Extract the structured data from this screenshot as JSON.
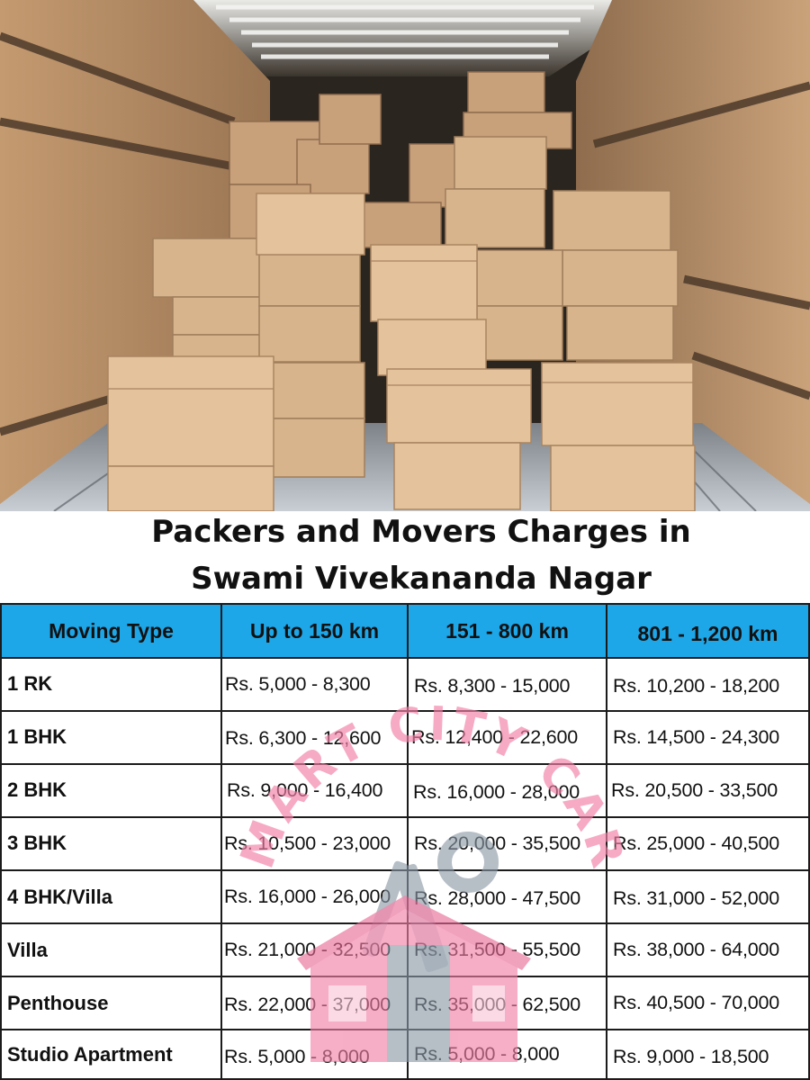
{
  "heading": {
    "line1": "Packers and Movers Charges in",
    "line2": "Swami Vivekananda Nagar"
  },
  "table": {
    "headers": [
      "Moving Type",
      "Up to 150 km",
      "151 - 800 km",
      "801 - 1,200 km"
    ],
    "rows": [
      {
        "type": "1 RK",
        "up_to_150": "Rs. 5,000 - 8,300",
        "km_151_800": "Rs. 8,300 - 15,000",
        "km_801_1200": "Rs. 10,200 - 18,200"
      },
      {
        "type": "1 BHK",
        "up_to_150": "Rs. 6,300 - 12,600",
        "km_151_800": "Rs. 12,400 - 22,600",
        "km_801_1200": "Rs. 14,500 - 24,300"
      },
      {
        "type": "2 BHK",
        "up_to_150": "Rs. 9,000 - 16,400",
        "km_151_800": "Rs. 16,000 - 28,000",
        "km_801_1200": "Rs. 20,500 - 33,500"
      },
      {
        "type": "3 BHK",
        "up_to_150": "Rs. 10,500 - 23,000",
        "km_151_800": "Rs. 20,000 - 35,500",
        "km_801_1200": "Rs. 25,000 - 40,500"
      },
      {
        "type": "4 BHK/Villa",
        "up_to_150": "Rs. 16,000 - 26,000",
        "km_151_800": "Rs. 28,000 - 47,500",
        "km_801_1200": "Rs. 31,000 - 52,000"
      },
      {
        "type": "Villa",
        "up_to_150": "Rs. 21,000 - 32,500",
        "km_151_800": "Rs. 31,500 - 55,500",
        "km_801_1200": "Rs. 38,000 - 64,000"
      },
      {
        "type": "Penthouse",
        "up_to_150": "Rs. 22,000 - 37,000",
        "km_151_800": "Rs. 35,000 - 62,500",
        "km_801_1200": "Rs. 40,500 - 70,000"
      },
      {
        "type": "Studio Apartment",
        "up_to_150": "Rs. 5,000 - 8,000",
        "km_151_800": "Rs. 5,000 - 8,000",
        "km_801_1200": "Rs. 9,000 - 18,500"
      }
    ]
  },
  "watermark": {
    "text": "SMART CITY CARE",
    "icon": "house-wrench-logo"
  },
  "colors": {
    "header_bg": "#1ea7e8",
    "watermark_pink": "#f27fa6",
    "watermark_grey": "#8b98a5"
  }
}
